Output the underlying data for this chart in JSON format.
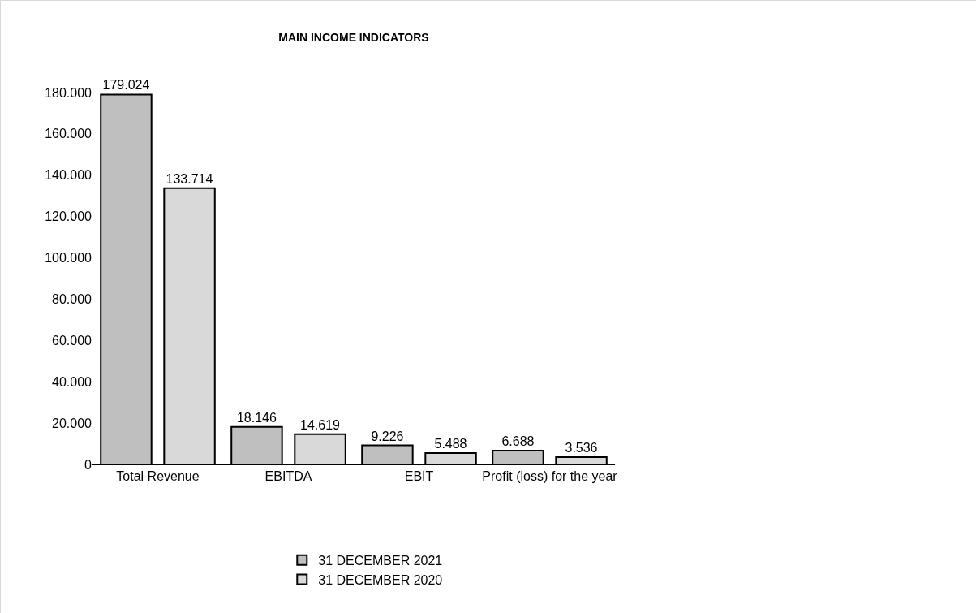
{
  "chart_data": {
    "type": "bar",
    "title": "MAIN INCOME INDICATORS",
    "categories": [
      "Total Revenue",
      "EBITDA",
      "EBIT",
      "Profit (loss) for the year"
    ],
    "series": [
      {
        "name": "31 DECEMBER 2021",
        "color": "#bfbfbf",
        "values": [
          179024,
          18146,
          9226,
          6688
        ],
        "value_labels": [
          "179.024",
          "18.146",
          "9.226",
          "6.688"
        ]
      },
      {
        "name": "31 DECEMBER 2020",
        "color": "#d9d9d9",
        "values": [
          133714,
          14619,
          5488,
          3536
        ],
        "value_labels": [
          "133.714",
          "14.619",
          "5.488",
          "3.536"
        ]
      }
    ],
    "ylim": [
      0,
      180000
    ],
    "yticks": [
      {
        "value": 0,
        "label": "0"
      },
      {
        "value": 20000,
        "label": "20.000"
      },
      {
        "value": 40000,
        "label": "40.000"
      },
      {
        "value": 60000,
        "label": "60.000"
      },
      {
        "value": 80000,
        "label": "80.000"
      },
      {
        "value": 100000,
        "label": "100.000"
      },
      {
        "value": 120000,
        "label": "120.000"
      },
      {
        "value": 140000,
        "label": "140.000"
      },
      {
        "value": 160000,
        "label": "160.000"
      },
      {
        "value": 180000,
        "label": "180.000"
      }
    ],
    "grid": false,
    "legend": "bottom"
  }
}
